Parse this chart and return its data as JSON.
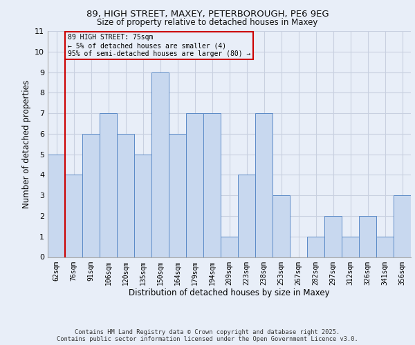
{
  "title_line1": "89, HIGH STREET, MAXEY, PETERBOROUGH, PE6 9EG",
  "title_line2": "Size of property relative to detached houses in Maxey",
  "xlabel": "Distribution of detached houses by size in Maxey",
  "ylabel": "Number of detached properties",
  "footer": "Contains HM Land Registry data © Crown copyright and database right 2025.\nContains public sector information licensed under the Open Government Licence v3.0.",
  "categories": [
    "62sqm",
    "76sqm",
    "91sqm",
    "106sqm",
    "120sqm",
    "135sqm",
    "150sqm",
    "164sqm",
    "179sqm",
    "194sqm",
    "209sqm",
    "223sqm",
    "238sqm",
    "253sqm",
    "267sqm",
    "282sqm",
    "297sqm",
    "312sqm",
    "326sqm",
    "341sqm",
    "356sqm"
  ],
  "values": [
    5,
    4,
    6,
    7,
    6,
    5,
    9,
    6,
    7,
    7,
    1,
    4,
    7,
    3,
    0,
    1,
    2,
    1,
    2,
    1,
    3
  ],
  "bar_color": "#c8d8ef",
  "bar_edge_color": "#5b8ac7",
  "ylim": [
    0,
    11
  ],
  "yticks": [
    0,
    1,
    2,
    3,
    4,
    5,
    6,
    7,
    8,
    9,
    10,
    11
  ],
  "subject_bar_index": 1,
  "subject_line_color": "#cc0000",
  "annotation_text": "89 HIGH STREET: 75sqm\n← 5% of detached houses are smaller (4)\n95% of semi-detached houses are larger (80) →",
  "annotation_box_color": "#cc0000",
  "background_color": "#e8eef8",
  "grid_color": "#c8d0e0"
}
